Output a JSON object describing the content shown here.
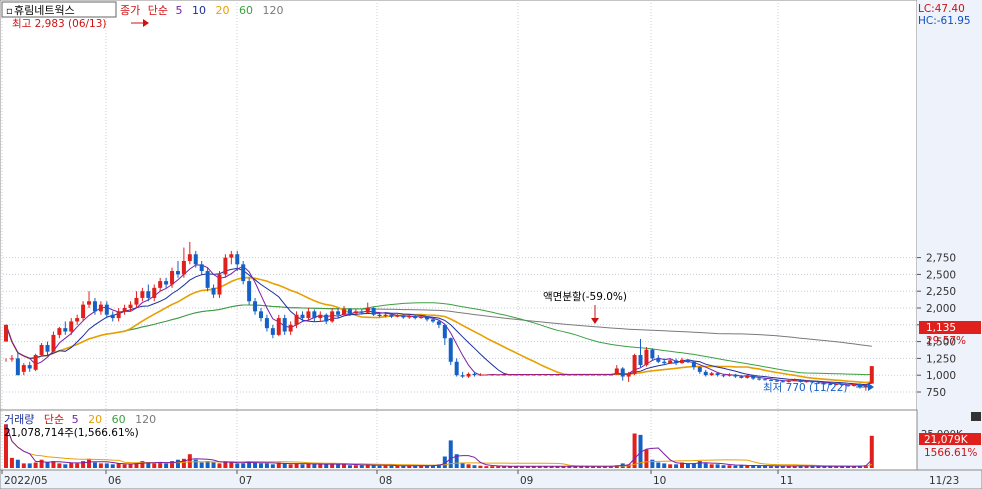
{
  "header": {
    "stock_name": "휴림네트웍스",
    "price_label": "종가",
    "ma_type": "단순",
    "ma_periods": [
      "5",
      "10",
      "20",
      "60",
      "120"
    ],
    "lc": "LC:47.40",
    "hc": "HC:-61.95"
  },
  "annotations": {
    "high": "최고 2,983 (06/13)",
    "low": "최저 770 (11/22)",
    "split": "액면분할(-59.0%)",
    "last_price": "1,135",
    "last_change": "29.57%"
  },
  "volume_header": {
    "title": "거래량",
    "ma_type": "단순",
    "ma_periods": [
      "5",
      "20",
      "60",
      "120"
    ],
    "value_line": "21,078,714주(1,566.61%)",
    "last_volume": "21,079K",
    "last_ratio": "1566.61%",
    "axis_top": "25,000K"
  },
  "colors": {
    "up": "#e0201c",
    "down": "#1560c4",
    "ma5": "#7a1fa8",
    "ma10": "#1c2f9e",
    "ma20": "#e8a000",
    "ma60": "#3aa040",
    "ma120": "#7a7a7a",
    "axis_text": "#333333",
    "lc": "#d01010",
    "hc": "#1050c0"
  },
  "chart_data": {
    "type": "candlestick",
    "title": "휴림네트웍스",
    "price_ticks": [
      750,
      1000,
      1250,
      1500,
      1750,
      2000,
      2250,
      2500,
      2750
    ],
    "price_tick_labels": [
      "750",
      "1,000",
      "1,250",
      "1,500",
      "1,750",
      "2,000",
      "2,250",
      "2,500",
      "2,750"
    ],
    "x_labels": [
      "2022/05",
      "06",
      "07",
      "08",
      "09",
      "10",
      "11",
      "11/23"
    ],
    "high_point": {
      "value": 2983,
      "date": "06/13"
    },
    "low_point": {
      "value": 770,
      "date": "11/22"
    },
    "last_close": 1135,
    "last_change_pct": 29.57,
    "candles": [
      [
        1500,
        1750,
        1250,
        1200
      ],
      [
        1250,
        1250,
        1300,
        1200
      ],
      [
        1250,
        1000,
        1350,
        1000
      ],
      [
        1050,
        1150,
        1180,
        1000
      ],
      [
        1150,
        1100,
        1200,
        1050
      ],
      [
        1080,
        1300,
        1320,
        1060
      ],
      [
        1300,
        1450,
        1480,
        1280
      ],
      [
        1450,
        1350,
        1500,
        1300
      ],
      [
        1350,
        1600,
        1650,
        1340
      ],
      [
        1600,
        1700,
        1720,
        1550
      ],
      [
        1700,
        1650,
        1800,
        1600
      ],
      [
        1650,
        1800,
        1850,
        1600
      ],
      [
        1800,
        1850,
        1900,
        1750
      ],
      [
        1850,
        2050,
        2100,
        1800
      ],
      [
        2050,
        2100,
        2250,
        2000
      ],
      [
        2100,
        1950,
        2150,
        1900
      ],
      [
        1950,
        2050,
        2100,
        1900
      ],
      [
        2050,
        1900,
        2100,
        1850
      ],
      [
        1900,
        1850,
        1950,
        1800
      ],
      [
        1850,
        1950,
        2000,
        1800
      ],
      [
        1950,
        2000,
        2050,
        1900
      ],
      [
        2000,
        2050,
        2100,
        1950
      ],
      [
        2050,
        2150,
        2250,
        2000
      ],
      [
        2150,
        2250,
        2300,
        2100
      ],
      [
        2250,
        2150,
        2350,
        2100
      ],
      [
        2150,
        2300,
        2350,
        2100
      ],
      [
        2300,
        2400,
        2450,
        2250
      ],
      [
        2400,
        2350,
        2450,
        2300
      ],
      [
        2350,
        2550,
        2600,
        2300
      ],
      [
        2550,
        2500,
        2700,
        2450
      ],
      [
        2500,
        2700,
        2900,
        2450
      ],
      [
        2700,
        2800,
        2983,
        2650
      ],
      [
        2800,
        2650,
        2850,
        2600
      ],
      [
        2650,
        2550,
        2700,
        2500
      ],
      [
        2550,
        2300,
        2600,
        2250
      ],
      [
        2300,
        2200,
        2350,
        2150
      ],
      [
        2200,
        2500,
        2550,
        2150
      ],
      [
        2500,
        2750,
        2800,
        2450
      ],
      [
        2750,
        2800,
        2850,
        2650
      ],
      [
        2800,
        2650,
        2850,
        2550
      ],
      [
        2650,
        2400,
        2700,
        2350
      ],
      [
        2400,
        2100,
        2450,
        2050
      ],
      [
        2100,
        1950,
        2150,
        1900
      ],
      [
        1950,
        1850,
        2000,
        1800
      ],
      [
        1850,
        1700,
        1900,
        1650
      ],
      [
        1700,
        1600,
        1750,
        1550
      ],
      [
        1600,
        1850,
        1900,
        1580
      ],
      [
        1850,
        1650,
        1900,
        1600
      ],
      [
        1650,
        1750,
        1800,
        1600
      ],
      [
        1750,
        1900,
        1950,
        1700
      ],
      [
        1900,
        1850,
        1950,
        1800
      ],
      [
        1850,
        1950,
        2000,
        1820
      ],
      [
        1950,
        1850,
        1980,
        1800
      ],
      [
        1850,
        1900,
        1950,
        1800
      ],
      [
        1900,
        1800,
        1920,
        1760
      ],
      [
        1800,
        1950,
        2000,
        1780
      ],
      [
        1950,
        1900,
        2000,
        1850
      ],
      [
        1900,
        1980,
        2030,
        1880
      ],
      [
        1980,
        1920,
        2000,
        1880
      ],
      [
        1920,
        1950,
        1980,
        1890
      ],
      [
        1950,
        1930,
        1980,
        1900
      ],
      [
        1930,
        2000,
        2080,
        1920
      ],
      [
        2000,
        1900,
        2020,
        1880
      ],
      [
        1900,
        1880,
        1920,
        1860
      ],
      [
        1880,
        1900,
        1920,
        1860
      ],
      [
        1900,
        1870,
        1920,
        1850
      ],
      [
        1870,
        1890,
        1910,
        1860
      ],
      [
        1890,
        1860,
        1900,
        1840
      ],
      [
        1860,
        1880,
        1900,
        1840
      ],
      [
        1880,
        1850,
        1900,
        1830
      ],
      [
        1850,
        1870,
        1890,
        1840
      ],
      [
        1870,
        1830,
        1880,
        1800
      ],
      [
        1830,
        1800,
        1850,
        1780
      ],
      [
        1800,
        1750,
        1820,
        1700
      ],
      [
        1750,
        1550,
        1760,
        1450
      ],
      [
        1550,
        1200,
        1560,
        1150
      ],
      [
        1200,
        1000,
        1250,
        980
      ],
      [
        1000,
        980,
        1050,
        960
      ],
      [
        980,
        1020,
        1040,
        960
      ],
      [
        1020,
        1000,
        1050,
        980
      ],
      [
        1000,
        1010,
        1030,
        990
      ],
      [
        1010,
        1010,
        1010,
        1010
      ],
      [
        1010,
        1010,
        1010,
        1010
      ],
      [
        1010,
        1010,
        1010,
        1010
      ],
      [
        1010,
        1010,
        1010,
        1010
      ],
      [
        1010,
        1010,
        1010,
        1010
      ],
      [
        1010,
        1010,
        1010,
        1010
      ],
      [
        1010,
        1010,
        1010,
        1010
      ],
      [
        1010,
        1010,
        1010,
        1010
      ],
      [
        1010,
        1010,
        1010,
        1010
      ],
      [
        1010,
        1010,
        1010,
        1010
      ],
      [
        1010,
        1010,
        1010,
        1010
      ],
      [
        1010,
        1010,
        1010,
        1010
      ],
      [
        1010,
        1010,
        1010,
        1010
      ],
      [
        1010,
        1010,
        1010,
        1010
      ],
      [
        1010,
        1010,
        1010,
        1010
      ],
      [
        1010,
        1010,
        1010,
        1010
      ],
      [
        1010,
        1010,
        1010,
        1010
      ],
      [
        1010,
        1010,
        1010,
        1010
      ],
      [
        1010,
        1010,
        1010,
        1010
      ],
      [
        1010,
        1010,
        1010,
        1010
      ],
      [
        1010,
        1010,
        1010,
        1010
      ],
      [
        1010,
        1010,
        1010,
        1010
      ],
      [
        1010,
        1100,
        1150,
        1000
      ],
      [
        1100,
        980,
        1120,
        920
      ],
      [
        980,
        1020,
        1050,
        900
      ],
      [
        1020,
        1300,
        1320,
        1000
      ],
      [
        1300,
        1150,
        1540,
        1120
      ],
      [
        1150,
        1380,
        1420,
        1130
      ],
      [
        1380,
        1250,
        1400,
        1220
      ],
      [
        1250,
        1200,
        1300,
        1180
      ],
      [
        1200,
        1180,
        1250,
        1150
      ],
      [
        1180,
        1220,
        1240,
        1170
      ],
      [
        1220,
        1180,
        1250,
        1150
      ],
      [
        1180,
        1230,
        1260,
        1170
      ],
      [
        1230,
        1200,
        1240,
        1180
      ],
      [
        1200,
        1120,
        1210,
        1080
      ],
      [
        1120,
        1050,
        1130,
        1020
      ],
      [
        1050,
        1000,
        1080,
        980
      ],
      [
        1000,
        1030,
        1050,
        990
      ],
      [
        1030,
        1000,
        1040,
        980
      ],
      [
        1000,
        990,
        1020,
        970
      ],
      [
        990,
        1010,
        1030,
        980
      ],
      [
        1010,
        980,
        1020,
        960
      ],
      [
        980,
        960,
        1000,
        950
      ],
      [
        960,
        1000,
        1020,
        950
      ],
      [
        1000,
        950,
        1010,
        930
      ],
      [
        950,
        940,
        960,
        920
      ],
      [
        940,
        930,
        960,
        920
      ],
      [
        930,
        920,
        950,
        910
      ],
      [
        920,
        910,
        940,
        900
      ],
      [
        910,
        900,
        930,
        890
      ],
      [
        900,
        920,
        930,
        890
      ],
      [
        920,
        930,
        950,
        910
      ],
      [
        930,
        900,
        940,
        890
      ],
      [
        900,
        910,
        920,
        890
      ],
      [
        910,
        890,
        920,
        880
      ],
      [
        890,
        880,
        900,
        870
      ],
      [
        880,
        870,
        890,
        860
      ],
      [
        870,
        860,
        880,
        850
      ],
      [
        860,
        870,
        880,
        850
      ],
      [
        870,
        850,
        880,
        840
      ],
      [
        850,
        840,
        860,
        830
      ],
      [
        840,
        870,
        880,
        830
      ],
      [
        870,
        820,
        880,
        800
      ],
      [
        820,
        850,
        860,
        770
      ],
      [
        876,
        1135,
        1135,
        870
      ]
    ],
    "volume_ratio": [
      0.95,
      0.22,
      0.18,
      0.1,
      0.1,
      0.12,
      0.18,
      0.12,
      0.15,
      0.1,
      0.08,
      0.12,
      0.1,
      0.15,
      0.2,
      0.12,
      0.1,
      0.1,
      0.08,
      0.1,
      0.08,
      0.08,
      0.12,
      0.15,
      0.12,
      0.1,
      0.12,
      0.1,
      0.15,
      0.18,
      0.2,
      0.3,
      0.18,
      0.12,
      0.15,
      0.12,
      0.1,
      0.15,
      0.12,
      0.1,
      0.1,
      0.15,
      0.12,
      0.1,
      0.1,
      0.08,
      0.12,
      0.1,
      0.08,
      0.1,
      0.08,
      0.1,
      0.08,
      0.08,
      0.08,
      0.1,
      0.08,
      0.08,
      0.06,
      0.06,
      0.06,
      0.08,
      0.06,
      0.05,
      0.05,
      0.05,
      0.05,
      0.05,
      0.05,
      0.05,
      0.05,
      0.05,
      0.06,
      0.08,
      0.25,
      0.6,
      0.3,
      0.12,
      0.08,
      0.06,
      0.05,
      0.04,
      0.04,
      0.04,
      0.04,
      0.04,
      0.04,
      0.04,
      0.04,
      0.04,
      0.04,
      0.04,
      0.04,
      0.04,
      0.04,
      0.04,
      0.04,
      0.04,
      0.04,
      0.04,
      0.04,
      0.04,
      0.04,
      0.06,
      0.1,
      0.08,
      0.75,
      0.72,
      0.4,
      0.18,
      0.12,
      0.1,
      0.08,
      0.08,
      0.12,
      0.1,
      0.1,
      0.15,
      0.1,
      0.08,
      0.08,
      0.06,
      0.06,
      0.05,
      0.06,
      0.05,
      0.05,
      0.05,
      0.05,
      0.04,
      0.04,
      0.04,
      0.05,
      0.05,
      0.04,
      0.04,
      0.04,
      0.04,
      0.04,
      0.04,
      0.04,
      0.04,
      0.04,
      0.04,
      0.05,
      0.06,
      0.7
    ]
  }
}
